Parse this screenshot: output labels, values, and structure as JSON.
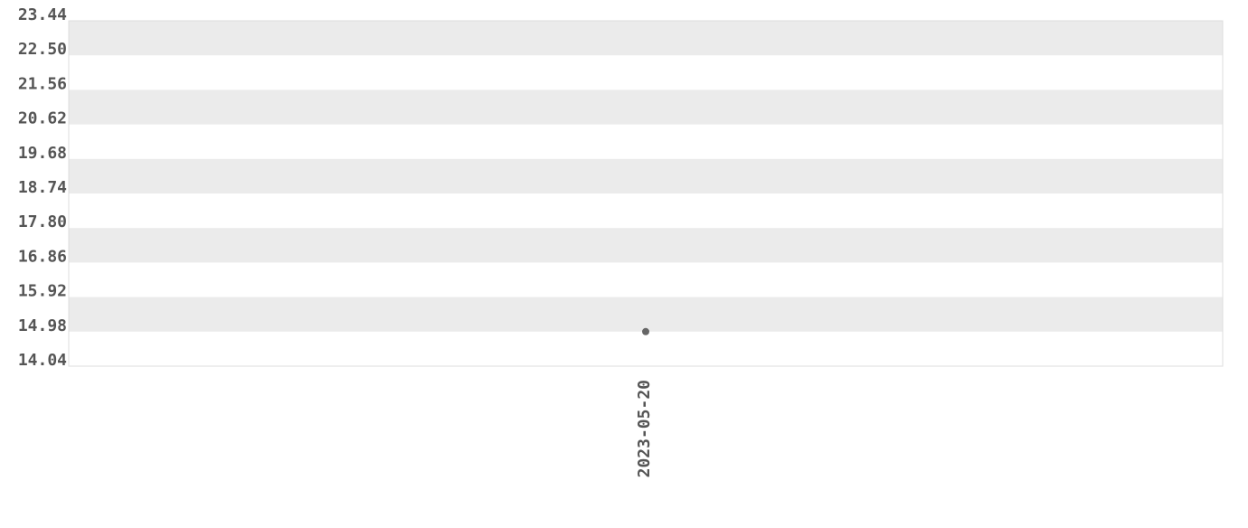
{
  "chart_data": {
    "type": "scatter",
    "title": "",
    "xlabel": "",
    "ylabel": "",
    "x_tick_labels": [
      "2023-05-20"
    ],
    "y_tick_labels": [
      "23.44",
      "22.50",
      "21.56",
      "20.62",
      "19.68",
      "18.74",
      "17.80",
      "16.86",
      "15.92",
      "14.98",
      "14.04"
    ],
    "ylim": [
      14.04,
      23.44
    ],
    "points": [
      {
        "x": "2023-05-20",
        "y": 14.98
      }
    ],
    "grid": "alternating horizontal bands",
    "colors": {
      "band": "#ebebeb",
      "point": "#666666",
      "text": "#555555",
      "border": "#dddddd"
    }
  }
}
